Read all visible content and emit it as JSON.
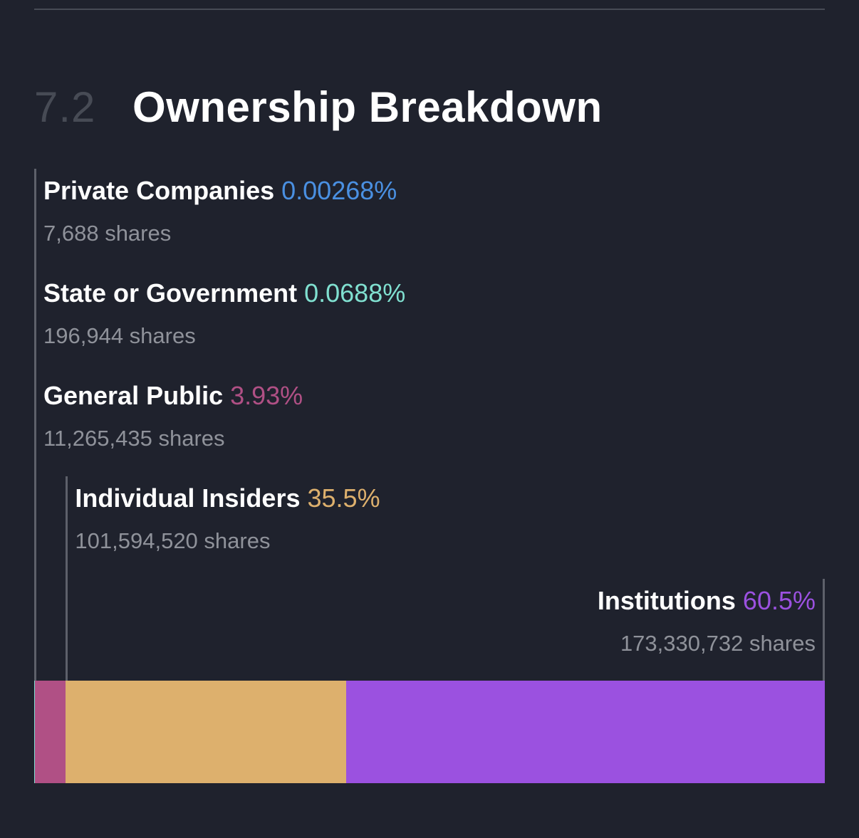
{
  "section": {
    "number": "7.2",
    "title": "Ownership Breakdown"
  },
  "chart_data": {
    "type": "bar",
    "orientation": "horizontal-stacked-100",
    "categories": [
      "Private Companies",
      "State or Government",
      "General Public",
      "Individual Insiders",
      "Institutions"
    ],
    "values": [
      0.00268,
      0.0688,
      3.93,
      35.5,
      60.5
    ],
    "value_labels": [
      "0.00268%",
      "0.0688%",
      "3.93%",
      "35.5%",
      "60.5%"
    ],
    "shares": [
      "7,688 shares",
      "196,944 shares",
      "11,265,435 shares",
      "101,594,520 shares",
      "173,330,732 shares"
    ],
    "colors": [
      "#4a90e2",
      "#80e0d0",
      "#b05085",
      "#ddb06d",
      "#9b51e0"
    ],
    "unit": "%"
  }
}
